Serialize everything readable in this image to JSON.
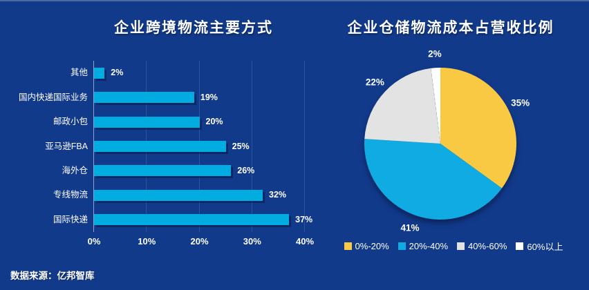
{
  "page": {
    "background": "#123A8B",
    "top_border_color": "#4E6AA3",
    "source_note": "数据来源：亿邦智库",
    "text_color": "#FFFFFF"
  },
  "chart_data": [
    {
      "type": "bar",
      "orientation": "horizontal",
      "title": "企业跨境物流主要方式",
      "categories": [
        "其他",
        "国内快递国际业务",
        "邮政小包",
        "亚马逊FBA",
        "海外仓",
        "专线物流",
        "国际快递"
      ],
      "values": [
        2,
        19,
        20,
        25,
        26,
        32,
        37
      ],
      "value_labels": [
        "2%",
        "19%",
        "20%",
        "25%",
        "26%",
        "32%",
        "37%"
      ],
      "xlabel": "",
      "ylabel": "",
      "xlim": [
        0,
        40
      ],
      "x_ticks": [
        {
          "value": 0,
          "label": "0%"
        },
        {
          "value": 10,
          "label": "10%"
        },
        {
          "value": 20,
          "label": "20%"
        },
        {
          "value": 30,
          "label": "30%"
        },
        {
          "value": 40,
          "label": "40%"
        }
      ],
      "grid": true,
      "bar_color": "#00ACE0",
      "gridline_color": "#2B53A0",
      "axis_line_color": "#8FA3CC"
    },
    {
      "type": "pie",
      "title": "企业仓储物流成本占营收比例",
      "direction": "clockwise",
      "start_angle_deg": 0,
      "legend_position": "bottom",
      "slices": [
        {
          "label": "0%-20%",
          "value": 35,
          "display": "35%",
          "color": "#F9C943"
        },
        {
          "label": "20%-40%",
          "value": 41,
          "display": "41%",
          "color": "#10ABE2"
        },
        {
          "label": "40%-60%",
          "value": 22,
          "display": "22%",
          "color": "#E3E3E3"
        },
        {
          "label": "60%以上",
          "value": 2,
          "display": "2%",
          "color": "#FFFFFF"
        }
      ]
    }
  ]
}
